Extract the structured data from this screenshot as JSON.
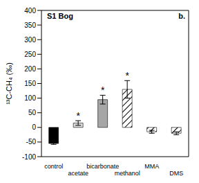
{
  "chart_data": {
    "type": "bar",
    "title": "S1 Bog",
    "panel_label": "b.",
    "y_label": "¹³C-CH₄ (‰)",
    "categories": [
      "control",
      "acetate",
      "bicarbonate",
      "methanol",
      "MMA",
      "DMS"
    ],
    "values": [
      -55,
      15,
      95,
      130,
      -15,
      -20
    ],
    "errors": [
      3,
      8,
      15,
      30,
      5,
      5
    ],
    "colors": [
      "#000000",
      "#d9d9d9",
      "#a6a6a6",
      "#ffffff",
      "#ffffff",
      "#ffffff"
    ],
    "ylim": [
      -100,
      400
    ],
    "yticks": [
      -100,
      -50,
      0,
      50,
      100,
      150,
      200,
      250,
      300,
      350,
      400
    ],
    "annotations": [
      {
        "category": "acetate",
        "text": "*"
      },
      {
        "category": "bicarbonate",
        "text": "*"
      },
      {
        "category": "methanol",
        "text": "*"
      }
    ],
    "grid": false
  }
}
